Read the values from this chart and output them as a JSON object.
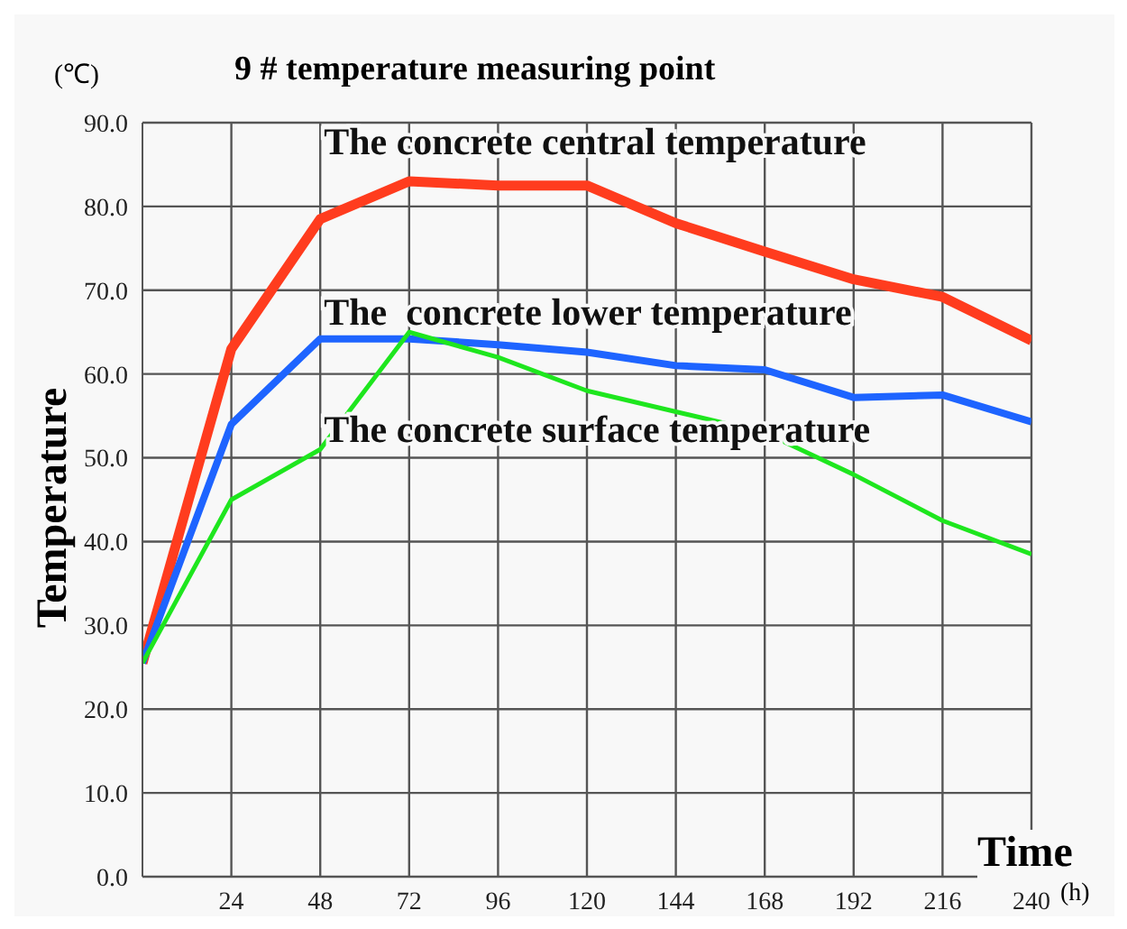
{
  "chart_data": {
    "type": "line",
    "title": "9 # temperature measuring point",
    "xlabel": "Time",
    "ylabel": "Temperature",
    "annotations": [
      "(℃)",
      "(h)"
    ],
    "x": [
      0,
      24,
      48,
      72,
      96,
      120,
      144,
      168,
      192,
      216,
      240
    ],
    "series": [
      {
        "name": "The concrete central temperature",
        "color": "#ff3c1e",
        "values": [
          25.5,
          63,
          78.5,
          83,
          82.5,
          82.5,
          78,
          74.6,
          71.3,
          69.2,
          64
        ]
      },
      {
        "name": "The  concrete lower temperature",
        "color": "#1e64ff",
        "values": [
          25.5,
          54,
          64.2,
          64.2,
          63.5,
          62.6,
          61,
          60.5,
          57.2,
          57.5,
          54.3
        ]
      },
      {
        "name": "The concrete surface temperature",
        "color": "#1ee61e",
        "values": [
          25.5,
          45,
          51,
          65,
          62,
          58,
          55.5,
          53,
          48,
          42.5,
          38.5
        ]
      }
    ],
    "xlim": [
      0,
      240
    ],
    "xticks": [
      24,
      48,
      72,
      96,
      120,
      144,
      168,
      192,
      216,
      240
    ],
    "ylim": [
      0,
      90
    ],
    "yticks": [
      {
        "value": 0,
        "label": "0.0"
      },
      {
        "value": 10,
        "label": "10.0"
      },
      {
        "value": 20,
        "label": "20.0"
      },
      {
        "value": 30,
        "label": "30.0"
      },
      {
        "value": 40,
        "label": "40.0"
      },
      {
        "value": 50,
        "label": "50.0"
      },
      {
        "value": 60,
        "label": "60.0"
      },
      {
        "value": 70,
        "label": "70.0"
      },
      {
        "value": 80,
        "label": "80.0"
      },
      {
        "value": 90,
        "label": "90.0"
      }
    ],
    "grid": true,
    "legend": false,
    "marker": "none",
    "line_style": "solid"
  }
}
